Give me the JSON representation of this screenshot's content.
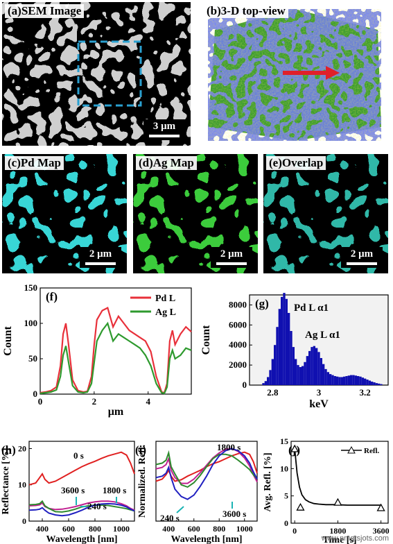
{
  "images": {
    "a": {
      "label": "(a)",
      "title": "SEM Image",
      "scale": "3 μm"
    },
    "b": {
      "label": "(b)",
      "title": "3-D top-view"
    },
    "c": {
      "label": "(c)",
      "title": "Pd Map",
      "scale": "2 μm"
    },
    "d": {
      "label": "(d)",
      "title": "Ag Map",
      "scale": "2 μm"
    },
    "e": {
      "label": "(e)",
      "title": "Overlap",
      "scale": "2 μm"
    }
  },
  "watermark": "www.nmgtsjots.com",
  "chart_data": [
    {
      "id": "f",
      "label": "(f)",
      "type": "line",
      "xlabel": "μm",
      "ylabel": "Count",
      "xlim": [
        0,
        5.6
      ],
      "ylim": [
        0,
        150
      ],
      "xticks": [
        0,
        2,
        4
      ],
      "yticks": [
        0,
        50,
        100,
        150
      ],
      "legend_position": "top-right",
      "x": [
        0,
        0.2,
        0.4,
        0.6,
        0.75,
        0.85,
        0.95,
        1.05,
        1.2,
        1.4,
        1.6,
        1.75,
        1.9,
        2.0,
        2.1,
        2.3,
        2.5,
        2.7,
        2.9,
        3.1,
        3.3,
        3.5,
        3.7,
        3.9,
        4.1,
        4.3,
        4.5,
        4.6,
        4.7,
        4.8,
        4.9,
        5.0,
        5.2,
        5.4,
        5.6
      ],
      "series": [
        {
          "name": "Pd L",
          "color": "#e8303a",
          "values": [
            2,
            3,
            5,
            10,
            40,
            85,
            100,
            70,
            20,
            5,
            3,
            4,
            25,
            70,
            105,
            118,
            122,
            95,
            110,
            100,
            90,
            85,
            80,
            75,
            60,
            25,
            3,
            2,
            15,
            75,
            90,
            70,
            85,
            95,
            88
          ]
        },
        {
          "name": "Ag L",
          "color": "#2e9a2e",
          "values": [
            1,
            2,
            3,
            6,
            25,
            55,
            68,
            45,
            12,
            3,
            2,
            3,
            15,
            45,
            75,
            90,
            100,
            75,
            85,
            80,
            75,
            70,
            65,
            55,
            40,
            15,
            2,
            1,
            10,
            50,
            62,
            50,
            55,
            65,
            62
          ]
        }
      ]
    },
    {
      "id": "g",
      "label": "(g)",
      "type": "bar",
      "xlabel": "keV",
      "ylabel": "Count",
      "xlim": [
        2.7,
        3.3
      ],
      "ylim": [
        0,
        9000
      ],
      "xticks": [
        2.8,
        3.0,
        3.2
      ],
      "yticks": [
        0,
        2000,
        4000,
        6000,
        8000
      ],
      "annotations": [
        "Pd L α1",
        "Ag L α1"
      ],
      "color": "#1010b0",
      "x": [
        2.76,
        2.77,
        2.78,
        2.79,
        2.8,
        2.81,
        2.82,
        2.83,
        2.84,
        2.85,
        2.86,
        2.87,
        2.88,
        2.89,
        2.9,
        2.91,
        2.92,
        2.93,
        2.94,
        2.95,
        2.96,
        2.97,
        2.98,
        2.99,
        3.0,
        3.01,
        3.02,
        3.03,
        3.04,
        3.05,
        3.06,
        3.07,
        3.08,
        3.09,
        3.1,
        3.11,
        3.12,
        3.13,
        3.14,
        3.15,
        3.16,
        3.17,
        3.18,
        3.19,
        3.2,
        3.21,
        3.22,
        3.23,
        3.24,
        3.25,
        3.26,
        3.27
      ],
      "values": [
        200,
        400,
        800,
        1500,
        2600,
        4000,
        5800,
        7600,
        8800,
        9200,
        8600,
        7200,
        5400,
        3800,
        2600,
        2000,
        1800,
        1900,
        2300,
        2900,
        3400,
        3800,
        3900,
        3700,
        3300,
        2700,
        2100,
        1600,
        1300,
        1100,
        1000,
        900,
        850,
        800,
        800,
        850,
        900,
        950,
        1000,
        1000,
        950,
        900,
        850,
        750,
        650,
        550,
        450,
        350,
        280,
        200,
        150,
        100
      ]
    },
    {
      "id": "h",
      "label": "(h)",
      "type": "line",
      "xlabel": "Wavelength [nm]",
      "ylabel": "Reflectance [%]",
      "xlim": [
        300,
        1100
      ],
      "ylim": [
        0,
        22
      ],
      "xticks": [
        400,
        600,
        800,
        1000
      ],
      "yticks": [
        0,
        10,
        20
      ],
      "annotations": [
        "0 s",
        "3600 s",
        "1800 s",
        "240 s"
      ],
      "x": [
        300,
        350,
        380,
        400,
        420,
        450,
        500,
        550,
        600,
        650,
        700,
        750,
        800,
        850,
        900,
        950,
        1000,
        1040,
        1070,
        1100
      ],
      "series": [
        {
          "name": "0 s",
          "color": "#e02020",
          "values": [
            10,
            10.5,
            12,
            13,
            11.5,
            10.5,
            11,
            12,
            13,
            14,
            15,
            15.8,
            16.5,
            17.3,
            18,
            18.5,
            19,
            18.2,
            16,
            13
          ]
        },
        {
          "name": "1800 s",
          "color": "#c02090",
          "values": [
            4.2,
            4.3,
            4.5,
            5,
            4,
            3.5,
            3.2,
            3.3,
            3.6,
            4,
            4.5,
            5,
            5.3,
            5.5,
            5.5,
            5.3,
            4.8,
            4.2,
            3.5,
            3
          ]
        },
        {
          "name": "3600 s",
          "color": "#2e8a2e",
          "values": [
            4.5,
            4.6,
            4.8,
            5.5,
            4.2,
            3.5,
            2.6,
            2.5,
            2.8,
            3.3,
            3.9,
            4.2,
            4.4,
            4.4,
            4.3,
            4,
            3.7,
            3.4,
            3.1,
            2.8
          ]
        },
        {
          "name": "240 s",
          "color": "#2020c0",
          "values": [
            3,
            3.1,
            3.3,
            3.7,
            3,
            2.2,
            1.7,
            1.5,
            1.7,
            2.3,
            3,
            3.8,
            4.4,
            4.7,
            4.8,
            4.7,
            4.4,
            3.9,
            3.3,
            2.8
          ]
        }
      ]
    },
    {
      "id": "i",
      "label": "(i)",
      "type": "line",
      "xlabel": "Wavelength [nm]",
      "ylabel": "Normalized. Refl.",
      "xlim": [
        300,
        1100
      ],
      "ylim": [
        0,
        1.1
      ],
      "xticks": [
        400,
        600,
        800,
        1000
      ],
      "yticks": [],
      "annotations": [
        "1800 s",
        "240 s",
        "3600 s"
      ],
      "x": [
        300,
        350,
        380,
        400,
        420,
        450,
        500,
        550,
        600,
        650,
        700,
        750,
        800,
        850,
        900,
        950,
        1000,
        1040,
        1070,
        1100
      ],
      "series": [
        {
          "name": "0 s",
          "color": "#e02020",
          "values": [
            0.55,
            0.58,
            0.64,
            0.7,
            0.62,
            0.55,
            0.57,
            0.62,
            0.66,
            0.7,
            0.75,
            0.79,
            0.82,
            0.86,
            0.9,
            0.93,
            0.95,
            0.92,
            0.82,
            0.66
          ]
        },
        {
          "name": "1800 s",
          "color": "#c02090",
          "values": [
            0.72,
            0.74,
            0.78,
            0.86,
            0.7,
            0.6,
            0.52,
            0.52,
            0.58,
            0.67,
            0.77,
            0.87,
            0.94,
            0.99,
            1.0,
            0.96,
            0.87,
            0.76,
            0.64,
            0.54
          ]
        },
        {
          "name": "3600 s",
          "color": "#2e8a2e",
          "values": [
            0.78,
            0.8,
            0.84,
            0.94,
            0.75,
            0.65,
            0.5,
            0.47,
            0.53,
            0.63,
            0.75,
            0.86,
            0.92,
            0.92,
            0.9,
            0.84,
            0.77,
            0.71,
            0.64,
            0.58
          ]
        },
        {
          "name": "240 s",
          "color": "#2020c0",
          "values": [
            0.6,
            0.62,
            0.66,
            0.74,
            0.6,
            0.44,
            0.34,
            0.3,
            0.36,
            0.48,
            0.62,
            0.78,
            0.9,
            0.97,
            1.0,
            0.97,
            0.9,
            0.8,
            0.68,
            0.58
          ]
        }
      ]
    },
    {
      "id": "j",
      "label": "(j)",
      "type": "scatter",
      "xlabel": "Time [s]",
      "ylabel": "Avg. Refl. [%]",
      "xlim": [
        -150,
        3900
      ],
      "ylim": [
        0,
        15
      ],
      "xticks": [
        0,
        1800,
        3600
      ],
      "yticks": [
        0,
        5,
        10,
        15
      ],
      "legend_position": "top-right",
      "series": [
        {
          "name": "Refl.",
          "color": "#000000",
          "points": [
            {
              "x": 0,
              "y": 13.6
            },
            {
              "x": 240,
              "y": 2.9
            },
            {
              "x": 1800,
              "y": 3.8
            },
            {
              "x": 3600,
              "y": 2.8
            }
          ],
          "fit": {
            "x": [
              0,
              100,
              200,
              300,
              450,
              600,
              800,
              1000,
              1300,
              1700,
              2200,
              2800,
              3400,
              3600
            ],
            "y": [
              13.6,
              9.2,
              6.6,
              5.2,
              4.3,
              3.9,
              3.6,
              3.5,
              3.4,
              3.4,
              3.3,
              3.3,
              3.3,
              3.3
            ]
          }
        }
      ]
    }
  ]
}
